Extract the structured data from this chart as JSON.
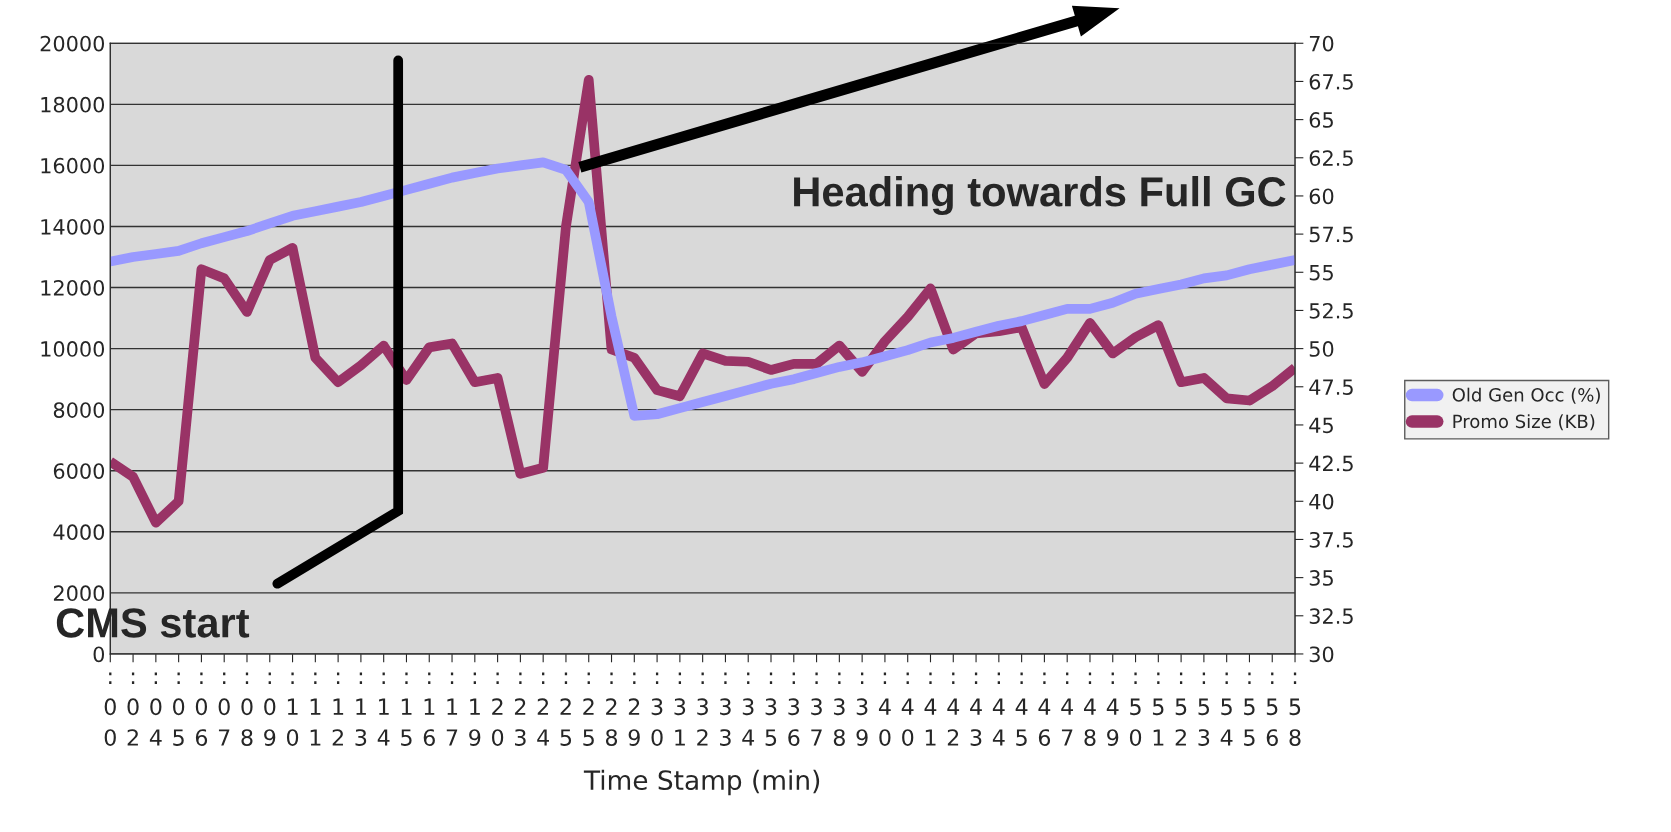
{
  "chart_data": {
    "type": "line",
    "xlabel": "Time Stamp (min)",
    "categories": [
      ":00",
      ":02",
      ":04",
      ":05",
      ":06",
      ":07",
      ":08",
      ":09",
      ":10",
      ":11",
      ":12",
      ":13",
      ":14",
      ":15",
      ":16",
      ":17",
      ":19",
      ":20",
      ":23",
      ":24",
      ":25",
      ":25",
      ":28",
      ":29",
      ":30",
      ":31",
      ":32",
      ":33",
      ":34",
      ":35",
      ":36",
      ":37",
      ":38",
      ":39",
      ":40",
      ":40",
      ":41",
      ":42",
      ":43",
      ":44",
      ":45",
      ":46",
      ":47",
      ":48",
      ":49",
      ":50",
      ":51",
      ":52",
      ":53",
      ":54",
      ":55",
      ":56",
      ":58"
    ],
    "series": [
      {
        "name": "Old Gen Occ (%)",
        "color": "#9999ff",
        "axis": "y2",
        "values": [
          55.7,
          56.0,
          56.2,
          56.4,
          56.9,
          57.3,
          57.7,
          58.2,
          58.7,
          59.0,
          59.3,
          59.6,
          60.0,
          60.4,
          60.8,
          61.2,
          61.5,
          61.8,
          62.0,
          62.2,
          61.7,
          59.6,
          52.1,
          45.6,
          45.7,
          46.1,
          46.5,
          46.9,
          47.3,
          47.7,
          48.0,
          48.4,
          48.8,
          49.1,
          49.5,
          49.9,
          50.4,
          50.7,
          51.1,
          51.5,
          51.8,
          52.2,
          52.6,
          52.6,
          53.0,
          53.6,
          53.9,
          54.2,
          54.6,
          54.8,
          55.2,
          55.5,
          55.8
        ]
      },
      {
        "name": "Promo Size (KB)",
        "color": "#993366",
        "values": [
          6300,
          5800,
          4300,
          5000,
          12600,
          12300,
          11200,
          12900,
          13300,
          9700,
          8900,
          9450,
          10100,
          8970,
          10040,
          10170,
          8900,
          9040,
          5900,
          6100,
          14000,
          18800,
          9970,
          9700,
          8640,
          8440,
          9840,
          9600,
          9570,
          9300,
          9500,
          9500,
          10100,
          9240,
          10240,
          11040,
          11970,
          9970,
          10500,
          10570,
          10700,
          8840,
          9700,
          10840,
          9840,
          10370,
          10770,
          8900,
          9040,
          8370,
          8300,
          8770,
          9370
        ]
      }
    ],
    "ylim": [
      0,
      20000
    ],
    "yticks": [
      0,
      2000,
      4000,
      6000,
      8000,
      10000,
      12000,
      14000,
      16000,
      18000,
      20000
    ],
    "y2lim": [
      30,
      70
    ],
    "y2ticks": [
      30,
      32.5,
      35,
      37.5,
      40,
      42.5,
      45,
      47.5,
      50,
      52.5,
      55,
      57.5,
      60,
      62.5,
      65,
      67.5,
      70
    ],
    "grid": "y",
    "legend": "right",
    "annotations": [
      "CMS start",
      "Heading towards Full GC"
    ]
  }
}
